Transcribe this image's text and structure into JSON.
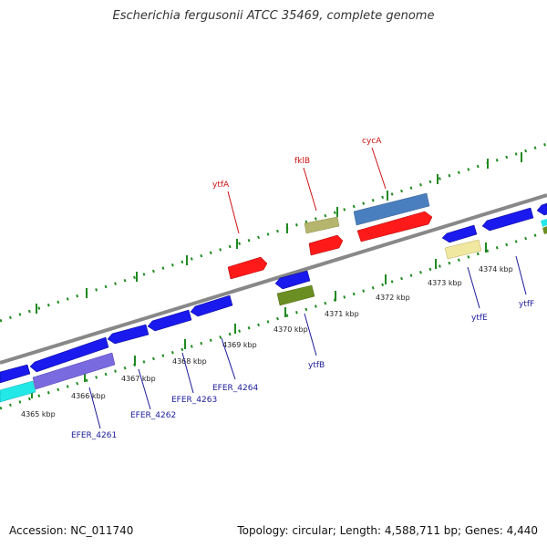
{
  "title": "Escherichia fergusonii ATCC 35469, complete genome",
  "footer": {
    "accession": "Accession: NC_011740",
    "topology": "Topology: circular; Length: 4,588,711 bp; Genes: 4,440"
  },
  "kbp_labels": [
    "4365 kbp",
    "4366 kbp",
    "4367 kbp",
    "4368 kbp",
    "4369 kbp",
    "4370 kbp",
    "4371 kbp",
    "4372 kbp",
    "4373 kbp",
    "4374 kbp"
  ],
  "top_labels": [
    "ytfA",
    "fklB",
    "cycA"
  ],
  "bottom_labels": [
    "EFER_4261",
    "EFER_4262",
    "EFER_4263",
    "EFER_4264",
    "ytfB",
    "ytfE",
    "ytfF"
  ],
  "colors": {
    "red": "#ff1a1a",
    "blue": "#1a1aee",
    "steelblue": "#4a7fbf",
    "olive": "#b5b56e",
    "darkolive": "#6b8e23",
    "khaki": "#f0e8a0",
    "cyan": "#22e8e8",
    "purple": "#7a6adf",
    "tick": "#1f8a1f",
    "axis": "#888888"
  }
}
